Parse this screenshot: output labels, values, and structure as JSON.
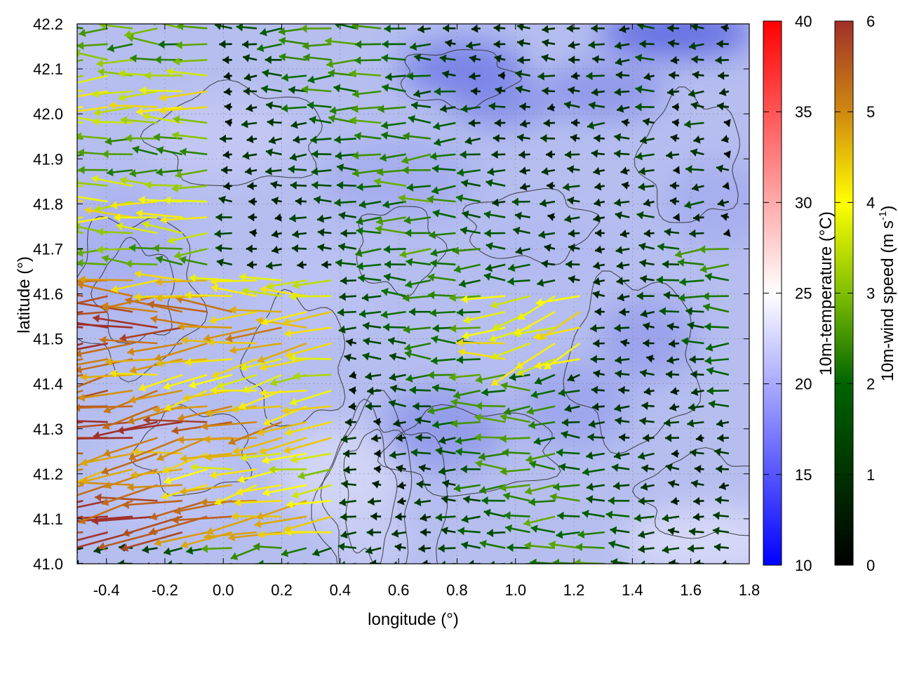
{
  "chart_data": {
    "type": "heatmap",
    "title": "",
    "subtitle": "",
    "xlabel": "longitude (°)",
    "ylabel": "latitude (°)",
    "xlim": [
      -0.5,
      1.8
    ],
    "ylim": [
      41.0,
      42.2
    ],
    "x_ticks": [
      "-0.4",
      "-0.2",
      "0.0",
      "0.2",
      "0.4",
      "0.6",
      "0.8",
      "1.0",
      "1.2",
      "1.4",
      "1.6",
      "1.8"
    ],
    "y_ticks": [
      "41.0",
      "41.1",
      "41.2",
      "41.3",
      "41.4",
      "41.5",
      "41.6",
      "41.7",
      "41.8",
      "41.9",
      "42.0",
      "42.1",
      "42.2"
    ],
    "grid": true,
    "overlays": [
      "filled temperature field",
      "terrain contour lines",
      "wind vector arrows"
    ],
    "colorbars": [
      {
        "label": "10m-temperature (°C)",
        "range": [
          10,
          40
        ],
        "ticks": [
          "10",
          "15",
          "20",
          "25",
          "30",
          "35",
          "40"
        ],
        "colors": [
          "#0000ff",
          "#ffffff",
          "#ff0000"
        ]
      },
      {
        "label": "10m-wind speed (m s",
        "label_superscript": "-1",
        "label_suffix": ")",
        "range": [
          0,
          6
        ],
        "ticks": [
          "0",
          "1",
          "2",
          "3",
          "4",
          "5",
          "6"
        ],
        "colors": [
          "#000000",
          "#006400",
          "#7fbf00",
          "#ffff00",
          "#d08a10",
          "#a0302a"
        ]
      }
    ],
    "temperature_field": {
      "approx_range_c": [
        15,
        22
      ],
      "notes": "mostly 17-20 °C; cooler pockets near 42.1N 0.8E and 42.2N 1.5E; warmer near 41.0-41.1N 1.6-1.8E"
    },
    "wind_field": {
      "prevailing_direction": "westward (easterly wind)",
      "max_speed_region": "41.1-41.6N, -0.5-0.4E with speeds 4-6 m/s",
      "typical_speed": "1-3 m/s elsewhere"
    }
  }
}
